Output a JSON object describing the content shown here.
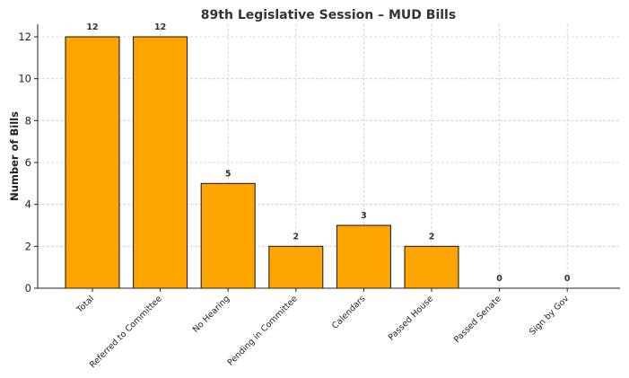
{
  "chart_data": {
    "type": "bar",
    "title": "89th Legislative Session – MUD Bills",
    "xlabel": "",
    "ylabel": "Number of Bills",
    "categories": [
      "Total",
      "Referred to Committee",
      "No Hearing",
      "Pending in Committee",
      "Calendars",
      "Passed House",
      "Passed Senate",
      "Sign by Gov"
    ],
    "values": [
      12,
      12,
      5,
      2,
      3,
      2,
      0,
      0
    ],
    "ylim": [
      0,
      12.6
    ],
    "yticks": [
      0,
      2,
      4,
      6,
      8,
      10,
      12
    ],
    "grid": true,
    "data_labels": true,
    "bar_color": "#FFA500",
    "edge_color": "#111111"
  }
}
